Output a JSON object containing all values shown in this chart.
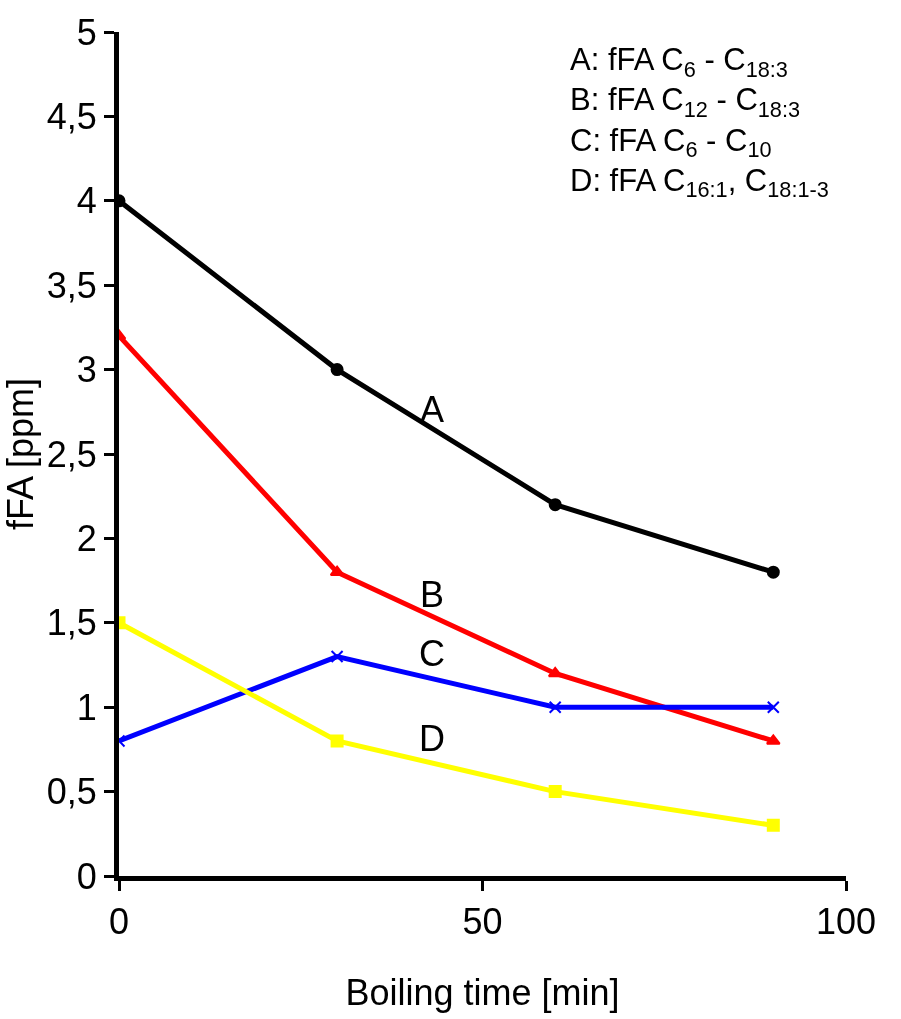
{
  "chart_data": {
    "type": "line",
    "xlabel": "Boiling time [min]",
    "ylabel": "fFA [ppm]",
    "x": [
      0,
      30,
      60,
      90
    ],
    "series": [
      {
        "name": "A",
        "color": "#000000",
        "marker": "circle",
        "values": [
          4,
          3,
          2.2,
          1.8
        ]
      },
      {
        "name": "B",
        "color": "#ff0000",
        "marker": "triangle",
        "values": [
          3.2,
          1.8,
          1.2,
          0.8
        ]
      },
      {
        "name": "C",
        "color": "#0000ff",
        "marker": "cross",
        "values": [
          0.8,
          1.3,
          1.0,
          1.0
        ]
      },
      {
        "name": "D",
        "color": "#ffff00",
        "marker": "square",
        "values": [
          1.5,
          0.8,
          0.5,
          0.3
        ]
      }
    ],
    "xlim": [
      0,
      100
    ],
    "xticks": [
      0,
      50,
      100
    ],
    "ylim": [
      0,
      5
    ],
    "yticks": [
      0,
      {
        "value": 0.5,
        "label": "0,5"
      },
      1,
      {
        "value": 1.5,
        "label": "1,5"
      },
      2,
      {
        "value": 2.5,
        "label": "2,5"
      },
      3,
      {
        "value": 3.5,
        "label": "3,5"
      },
      4,
      {
        "value": 4.5,
        "label": "4,5"
      },
      5
    ],
    "annotations": [
      "A: fFA C$_{6}$ - C$_{18:3}$",
      "B: fFA C$_{12}$ - C$_{18:3}$",
      "C: fFA C$_{6}$ - C$_{10}$",
      "D: fFA C$_{16:1}$, C$_{18:1-3}$"
    ],
    "legend": false
  }
}
